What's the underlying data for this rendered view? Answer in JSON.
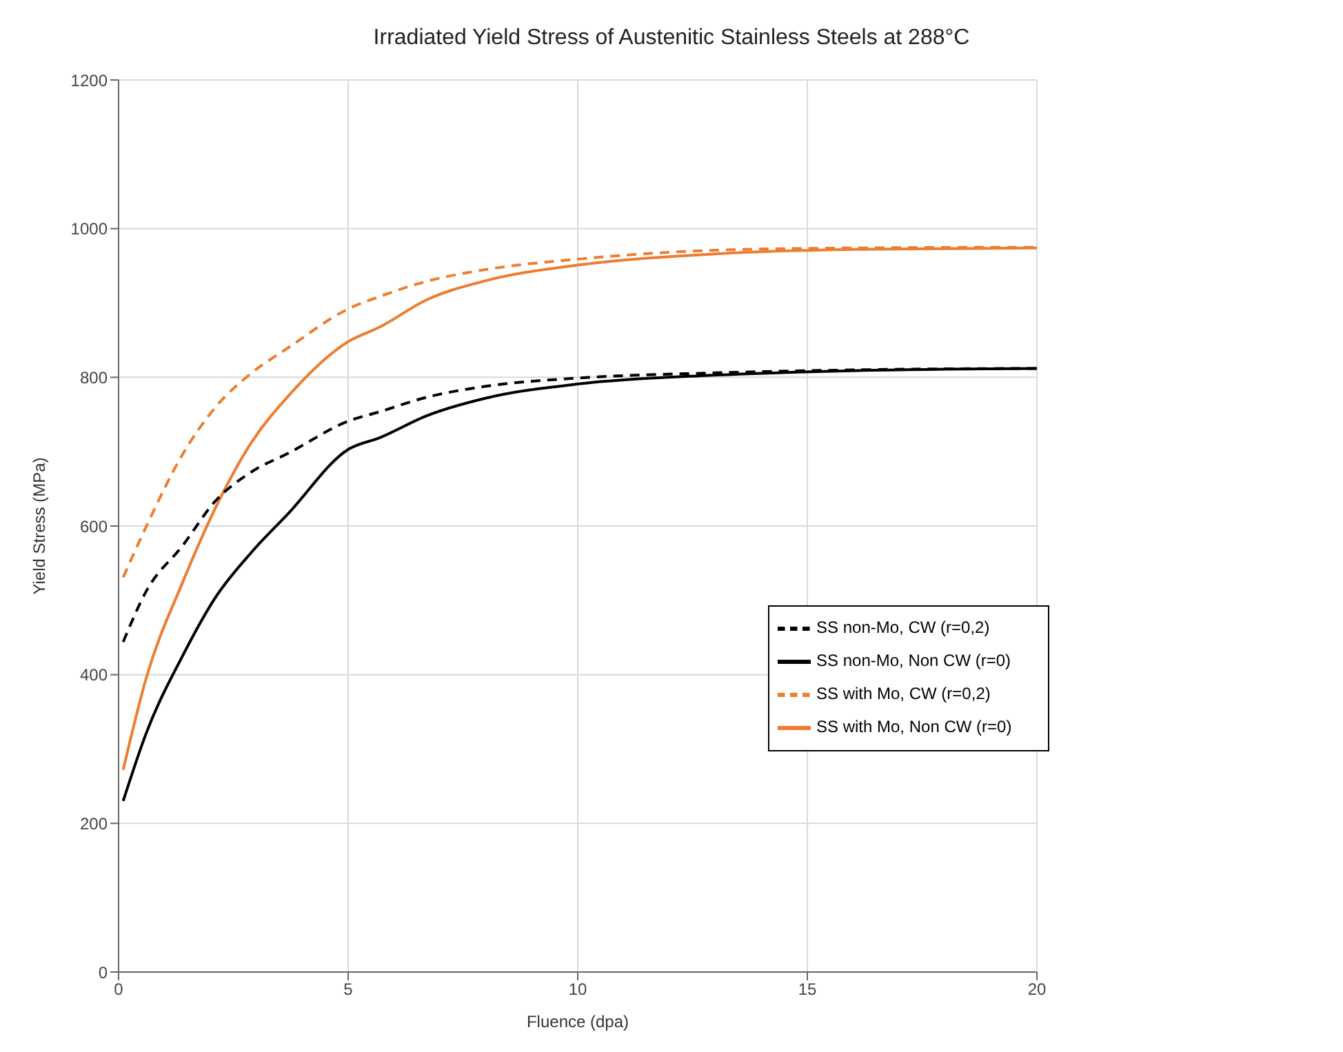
{
  "chart_data": {
    "type": "line",
    "title": "Irradiated Yield Stress of Austenitic Stainless Steels at 288°C",
    "xlabel": "Fluence (dpa)",
    "ylabel": "Yield Stress  (MPa)",
    "x": [
      0.1,
      0.6,
      1.4,
      2.1,
      2.9,
      3.7,
      5,
      5.7,
      6.7,
      8,
      10,
      13,
      16,
      20
    ],
    "series": [
      {
        "name": "SS with Mo, CW (r=0,2)",
        "color": "#ed7d31",
        "line_style": "dashed",
        "values": [
          531,
          599,
          697,
          759,
          806,
          840,
          892,
          909,
          929,
          945,
          959,
          971,
          974,
          975
        ]
      },
      {
        "name": "SS with Mo, Non CW (r=0)",
        "color": "#ed7d31",
        "line_style": "solid",
        "values": [
          272,
          395,
          525,
          623,
          713,
          775,
          848,
          868,
          904,
          930,
          951,
          966,
          972,
          974
        ]
      },
      {
        "name": "SS non-Mo, CW (r=0,2)",
        "color": "#000000",
        "line_style": "dashed",
        "values": [
          444,
          512,
          574,
          633,
          673,
          698,
          741,
          754,
          773,
          788,
          799,
          806,
          810,
          812
        ]
      },
      {
        "name": "SS non-Mo, Non CW (r=0)",
        "color": "#000000",
        "line_style": "solid",
        "values": [
          230,
          321,
          426,
          503,
          565,
          617,
          703,
          719,
          748,
          772,
          791,
          803,
          809,
          812
        ]
      }
    ],
    "xlim": [
      0,
      20
    ],
    "xticks": [
      0,
      5,
      10,
      15,
      20
    ],
    "ylim": [
      0,
      1200
    ],
    "yticks": [
      0,
      200,
      400,
      600,
      800,
      1000,
      1200
    ],
    "grid": true,
    "legend": "right",
    "marker": "none"
  }
}
